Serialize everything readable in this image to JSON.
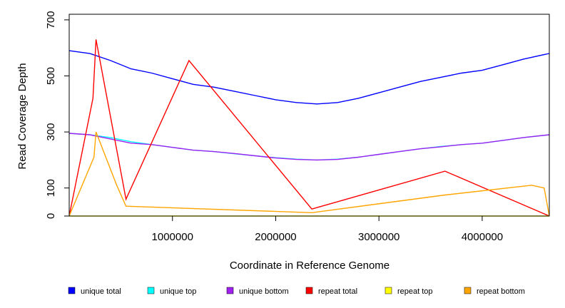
{
  "chart_data": {
    "type": "line",
    "title": "",
    "xlabel": "Coordinate in Reference Genome",
    "ylabel": "Read Coverage Depth",
    "xlim": [
      0,
      4650000
    ],
    "ylim": [
      0,
      720
    ],
    "x_ticks": [
      1000000,
      2000000,
      3000000,
      4000000
    ],
    "x_tick_labels": [
      "1000000",
      "2000000",
      "3000000",
      "4000000"
    ],
    "y_ticks": [
      0,
      100,
      300,
      500,
      700
    ],
    "y_tick_labels": [
      "0",
      "100",
      "300",
      "500",
      "700"
    ],
    "legend_position": "bottom",
    "series": [
      {
        "name": "unique total",
        "color": "#0000ff",
        "x": [
          0,
          200000,
          400000,
          600000,
          800000,
          1000000,
          1200000,
          1400000,
          1600000,
          1800000,
          2000000,
          2200000,
          2400000,
          2600000,
          2800000,
          3000000,
          3200000,
          3400000,
          3600000,
          3800000,
          4000000,
          4200000,
          4400000,
          4650000
        ],
        "y": [
          590,
          580,
          555,
          525,
          510,
          490,
          470,
          460,
          445,
          430,
          415,
          405,
          400,
          405,
          420,
          440,
          460,
          480,
          495,
          510,
          520,
          540,
          560,
          580
        ]
      },
      {
        "name": "unique top",
        "color": "#00ffff",
        "x": [
          0,
          200000,
          400000,
          600000,
          800000,
          1000000,
          1200000,
          1400000,
          1600000,
          1800000,
          2000000,
          2200000,
          2400000,
          2600000,
          2800000,
          3000000,
          3200000,
          3400000,
          3600000,
          3800000,
          4000000,
          4200000,
          4400000,
          4650000
        ],
        "y": [
          295,
          290,
          280,
          265,
          255,
          245,
          235,
          230,
          222,
          215,
          208,
          203,
          200,
          203,
          210,
          220,
          230,
          240,
          248,
          255,
          260,
          270,
          280,
          290
        ]
      },
      {
        "name": "unique bottom",
        "color": "#a020f0",
        "x": [
          0,
          200000,
          400000,
          600000,
          800000,
          1000000,
          1200000,
          1400000,
          1600000,
          1800000,
          2000000,
          2200000,
          2400000,
          2600000,
          2800000,
          3000000,
          3200000,
          3400000,
          3600000,
          3800000,
          4000000,
          4200000,
          4400000,
          4650000
        ],
        "y": [
          295,
          290,
          275,
          260,
          255,
          245,
          235,
          230,
          223,
          215,
          207,
          202,
          200,
          202,
          210,
          220,
          230,
          240,
          247,
          255,
          260,
          270,
          280,
          290
        ]
      },
      {
        "name": "repeat total",
        "color": "#ff0000",
        "x": [
          0,
          230000,
          260000,
          550000,
          1160000,
          2350000,
          3640000,
          4650000
        ],
        "y": [
          0,
          420,
          630,
          60,
          555,
          25,
          160,
          0
        ]
      },
      {
        "name": "repeat top",
        "color": "#ffff00",
        "x": [
          0,
          4650000
        ],
        "y": [
          0,
          0
        ]
      },
      {
        "name": "repeat bottom",
        "color": "#ffa500",
        "x": [
          0,
          240000,
          260000,
          460000,
          550000,
          2350000,
          3640000,
          4480000,
          4600000,
          4650000
        ],
        "y": [
          0,
          210,
          300,
          110,
          35,
          12,
          75,
          110,
          100,
          0
        ]
      }
    ]
  }
}
